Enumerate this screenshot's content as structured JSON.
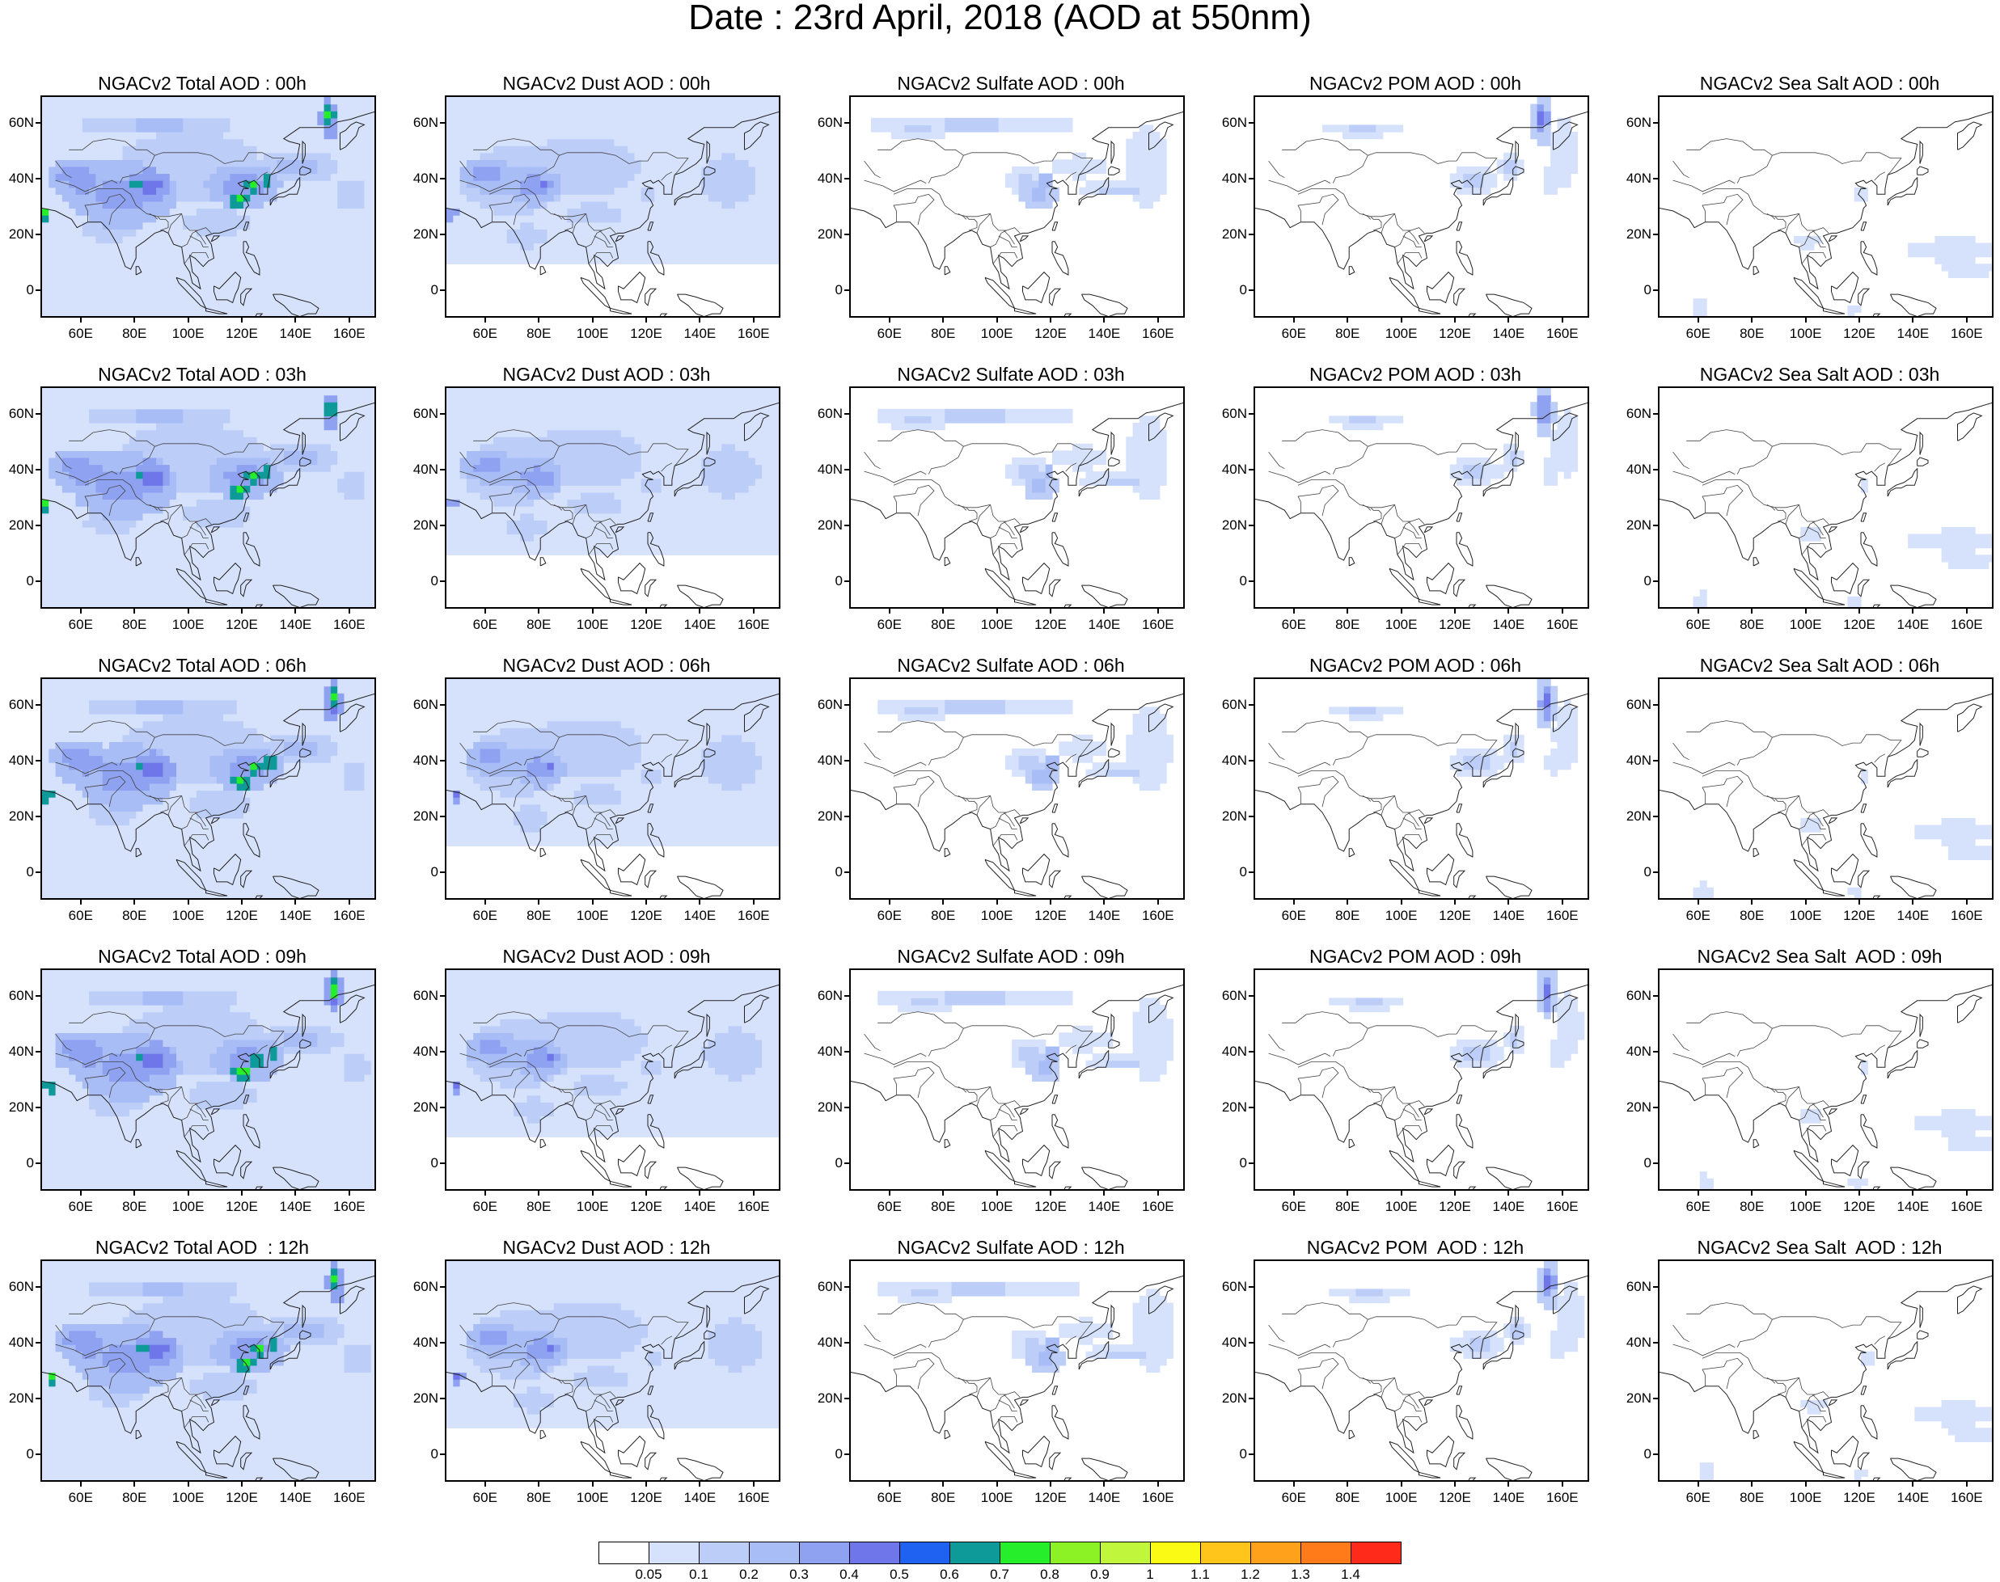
{
  "title": "Date : 23rd April, 2018 (AOD at 550nm)",
  "species": [
    "Total",
    "Dust",
    "Sulfate",
    "POM",
    "Sea Salt"
  ],
  "times": [
    "00h",
    "03h",
    "06h",
    "09h",
    "12h"
  ],
  "panel_titles": [
    [
      "NGACv2 Total AOD : 00h",
      "NGACv2 Dust AOD : 00h",
      "NGACv2 Sulfate AOD : 00h",
      "NGACv2 POM AOD : 00h",
      "NGACv2 Sea Salt AOD : 00h"
    ],
    [
      "NGACv2 Total AOD : 03h",
      "NGACv2 Dust AOD : 03h",
      "NGACv2 Sulfate AOD : 03h",
      "NGACv2 POM AOD : 03h",
      "NGACv2 Sea Salt AOD : 03h"
    ],
    [
      "NGACv2 Total AOD : 06h",
      "NGACv2 Dust AOD : 06h",
      "NGACv2 Sulfate AOD : 06h",
      "NGACv2 POM AOD : 06h",
      "NGACv2 Sea Salt AOD : 06h"
    ],
    [
      "NGACv2 Total AOD : 09h",
      "NGACv2 Dust AOD : 09h",
      "NGACv2 Sulfate AOD : 09h",
      "NGACv2 POM AOD : 09h",
      "NGACv2 Sea Salt  AOD : 09h"
    ],
    [
      "NGACv2 Total AOD  : 12h",
      "NGACv2 Dust AOD : 12h",
      "NGACv2 Sulfate AOD : 12h",
      "NGACv2 POM  AOD : 12h",
      "NGACv2 Sea Salt  AOD : 12h"
    ]
  ],
  "lat_tick_labels": [
    "60N",
    "40N",
    "20N",
    "0"
  ],
  "lon_tick_labels": [
    "60E",
    "80E",
    "100E",
    "120E",
    "140E",
    "160E"
  ],
  "colorbar": {
    "labels": [
      "0.05",
      "0.1",
      "0.2",
      "0.3",
      "0.4",
      "0.5",
      "0.6",
      "0.7",
      "0.8",
      "0.9",
      "1",
      "1.1",
      "1.2",
      "1.3",
      "1.4"
    ],
    "colors": [
      "#ffffff",
      "#d6e2fb",
      "#bccdf8",
      "#a8bcf6",
      "#8fa2f2",
      "#6f76ea",
      "#1f61f0",
      "#0e9a99",
      "#27ee2a",
      "#8cf225",
      "#c0f63c",
      "#fafa14",
      "#ffc51a",
      "#ffa11a",
      "#ff7b1a",
      "#ff2a1a"
    ]
  }
}
